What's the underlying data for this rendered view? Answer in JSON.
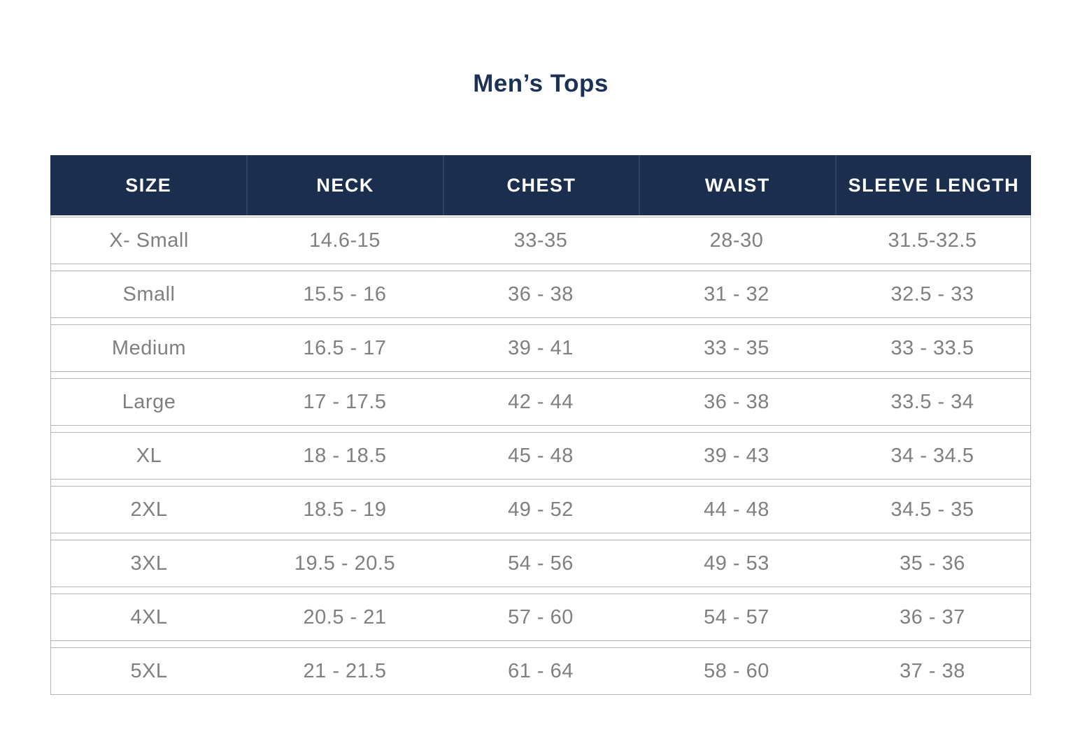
{
  "title": "Men’s Tops",
  "colors": {
    "header_bg": "#1b2e4d",
    "header_text": "#ffffff",
    "header_divider": "#2b4162",
    "title_text": "#1b3155",
    "body_text": "#7e8083",
    "row_border": "#b2b4b6",
    "background": "#ffffff"
  },
  "chart_data": {
    "type": "table",
    "title": "Men’s Tops",
    "columns": [
      "SIZE",
      "NECK",
      "CHEST",
      "WAIST",
      "SLEEVE LENGTH"
    ],
    "rows": [
      [
        "X- Small",
        "14.6-15",
        "33-35",
        "28-30",
        "31.5-32.5"
      ],
      [
        "Small",
        "15.5 - 16",
        "36 - 38",
        "31 - 32",
        "32.5 - 33"
      ],
      [
        "Medium",
        "16.5 - 17",
        "39 - 41",
        "33 - 35",
        "33 - 33.5"
      ],
      [
        "Large",
        "17 - 17.5",
        "42 - 44",
        "36 - 38",
        "33.5 - 34"
      ],
      [
        "XL",
        "18 - 18.5",
        "45 - 48",
        "39 - 43",
        "34 - 34.5"
      ],
      [
        "2XL",
        "18.5 - 19",
        "49 - 52",
        "44 - 48",
        "34.5 - 35"
      ],
      [
        "3XL",
        "19.5 - 20.5",
        "54 - 56",
        "49 - 53",
        "35 - 36"
      ],
      [
        "4XL",
        "20.5 - 21",
        "57 - 60",
        "54 - 57",
        "36 - 37"
      ],
      [
        "5XL",
        "21 - 21.5",
        "61 - 64",
        "58 - 60",
        "37 - 38"
      ]
    ]
  }
}
